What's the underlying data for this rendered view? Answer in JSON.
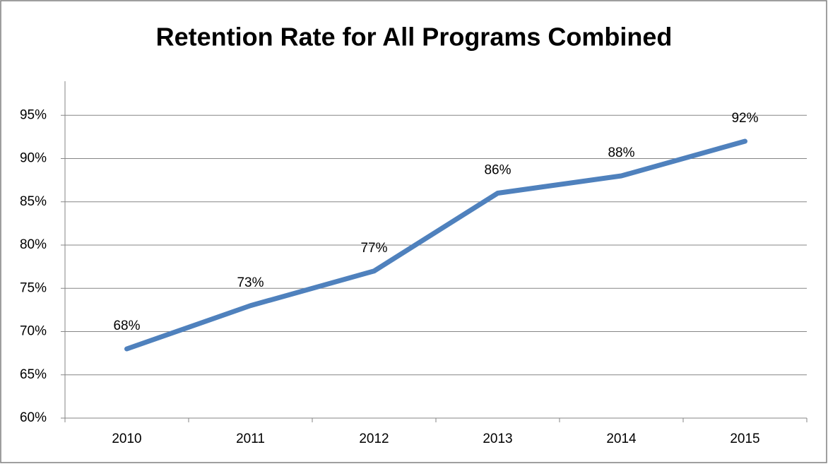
{
  "chart_data": {
    "type": "line",
    "title": "Retention Rate for All Programs Combined",
    "categories": [
      "2010",
      "2011",
      "2012",
      "2013",
      "2014",
      "2015"
    ],
    "values": [
      68,
      73,
      77,
      86,
      88,
      92
    ],
    "value_labels": [
      "68%",
      "73%",
      "77%",
      "86%",
      "88%",
      "92%"
    ],
    "color": "#4f81bd",
    "ylim": [
      60,
      100
    ],
    "yticks": [
      {
        "value": 60,
        "label": "60%"
      },
      {
        "value": 65,
        "label": "65%"
      },
      {
        "value": 70,
        "label": "70%"
      },
      {
        "value": 75,
        "label": "75%"
      },
      {
        "value": 80,
        "label": "80%"
      },
      {
        "value": 85,
        "label": "85%"
      },
      {
        "value": 90,
        "label": "90%"
      },
      {
        "value": 95,
        "label": "95%"
      }
    ],
    "grid": true
  }
}
